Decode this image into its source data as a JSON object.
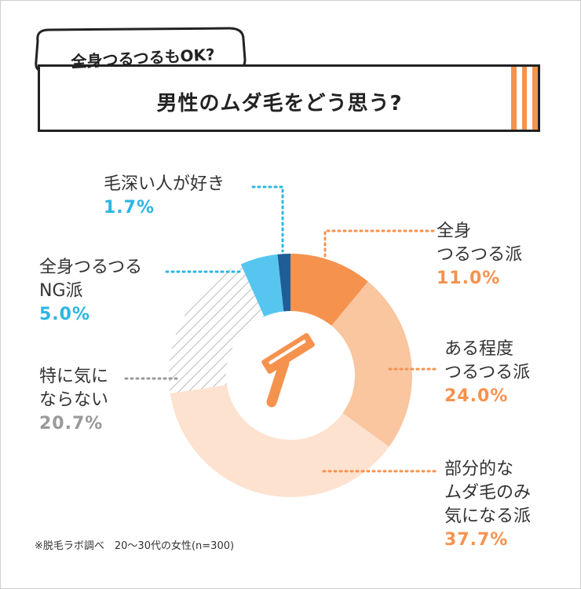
{
  "header": {
    "bubble_text": "全身つるつるもOK?",
    "title": "男性のムダ毛をどう思う?",
    "stripe_color": "#f5924e"
  },
  "razor_icon": "razor-icon",
  "chart_data": {
    "type": "pie",
    "donut": true,
    "categories": [
      "全身つるつる派",
      "ある程度つるつる派",
      "部分的なムダ毛のみ気になる派",
      "特に気にならない",
      "全身つるつるNG派",
      "毛深い人が好き"
    ],
    "values": [
      11.0,
      24.0,
      37.7,
      20.7,
      5.0,
      1.7
    ],
    "colors": [
      "#f5924e",
      "#f9c6a0",
      "#fde2cf",
      "hatch",
      "#56c6f0",
      "#1f5d98"
    ],
    "labels": [
      {
        "lines": [
          "全身",
          "つるつる派"
        ],
        "pct": "11.0%",
        "tone": "orange"
      },
      {
        "lines": [
          "ある程度",
          "つるつる派"
        ],
        "pct": "24.0%",
        "tone": "orange"
      },
      {
        "lines": [
          "部分的な",
          "ムダ毛のみ",
          "気になる派"
        ],
        "pct": "37.7%",
        "tone": "orange"
      },
      {
        "lines": [
          "特に気に",
          "ならない"
        ],
        "pct": "20.7%",
        "tone": "gray"
      },
      {
        "lines": [
          "全身つるつる",
          "NG派"
        ],
        "pct": "5.0%",
        "tone": "blue"
      },
      {
        "lines": [
          "毛深い人が好き"
        ],
        "pct": "1.7%",
        "tone": "blue"
      }
    ]
  },
  "footnote": "※脱毛ラボ調べ　20〜30代の女性(n=300)"
}
